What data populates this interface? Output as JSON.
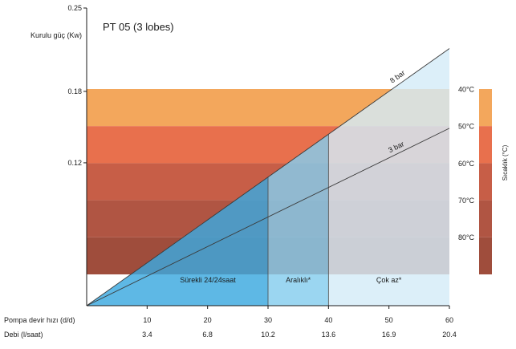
{
  "chart_data": {
    "type": "area",
    "title": "PT 05 (3 lobes)",
    "ylabel": "Kurulu güç (Kw)",
    "y_ticks": [
      {
        "label": "0.25",
        "value": 0.25
      },
      {
        "label": "0.18",
        "value": 0.18
      },
      {
        "label": "0.12",
        "value": 0.12
      }
    ],
    "ylim": [
      0,
      0.25
    ],
    "x_row_labels": [
      "Pompa devir hızı (d/d)",
      "Debi (l/saat)"
    ],
    "x_ticks": [
      10,
      20,
      30,
      40,
      50,
      60
    ],
    "x_ticks_flow": [
      "3.4",
      "6.8",
      "10.2",
      "13.6",
      "16.9",
      "20.4"
    ],
    "xlim": [
      0,
      60
    ],
    "pressure_lines": [
      {
        "name": "8 bar",
        "x": [
          0,
          60
        ],
        "y": [
          0,
          0.216
        ]
      },
      {
        "name": "3 bar",
        "x": [
          0,
          60
        ],
        "y": [
          0,
          0.149
        ]
      }
    ],
    "usage_zones": [
      {
        "name": "Sürekli 24/24saat",
        "x_start": 0,
        "x_end": 30,
        "color": "#3aa8df"
      },
      {
        "name": "Aralıklı*",
        "x_start": 30,
        "x_end": 40,
        "color": "#85cdee"
      },
      {
        "name": "Çok az*",
        "x_start": 40,
        "x_end": 60,
        "color": "#d4ebf8"
      }
    ],
    "temperature_bands": [
      {
        "name": "40°C",
        "color": "#f3a75c"
      },
      {
        "name": "50°C",
        "color": "#e8704d"
      },
      {
        "name": "60°C",
        "color": "#c75e47"
      },
      {
        "name": "70°C",
        "color": "#b05543"
      },
      {
        "name": "80°C",
        "color": "#9f4d3c"
      }
    ],
    "temperature_axis_label": "Sıcaklık (°C)"
  }
}
